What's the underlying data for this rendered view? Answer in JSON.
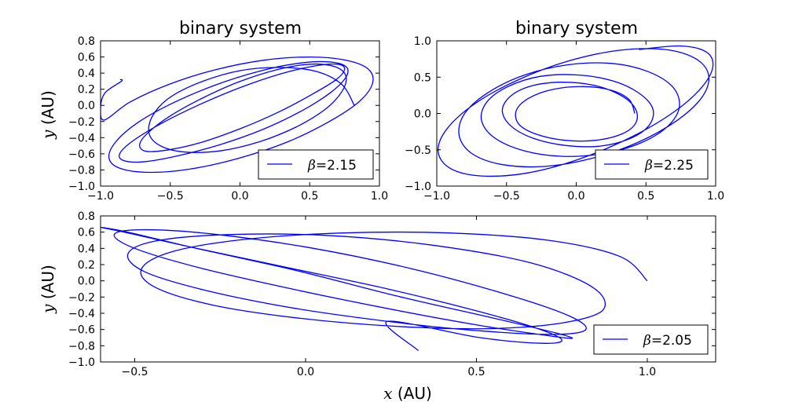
{
  "figure": {
    "xlabel_var": "x",
    "xlabel_unit": " (AU)"
  },
  "chart_data": [
    {
      "type": "line",
      "title": "binary system",
      "xlabel": "",
      "ylabel_var": "y",
      "ylabel_unit": " (AU)",
      "xlim": [
        -1.0,
        1.0
      ],
      "ylim": [
        -1.0,
        0.8
      ],
      "xticks": [
        "−1.0",
        "−0.5",
        "0.0",
        "0.5",
        "1.0"
      ],
      "xtick_values": [
        -1.0,
        -0.5,
        0.0,
        0.5,
        1.0
      ],
      "yticks": [
        "0.8",
        "0.6",
        "0.4",
        "0.2",
        "0.0",
        "−0.2",
        "−0.4",
        "−0.6",
        "−0.8",
        "−1.0"
      ],
      "ytick_values": [
        0.8,
        0.6,
        0.4,
        0.2,
        0.0,
        -0.2,
        -0.4,
        -0.6,
        -0.8,
        -1.0
      ],
      "legend": {
        "symbol": "β",
        "value": "=2.15",
        "placement": "lower-right"
      },
      "line_color": "#0000ff",
      "grid": false,
      "series": [
        {
          "x": [
            0.82,
            0.73,
            0.55,
            0.29,
            -0.0,
            -0.28,
            -0.51,
            -0.63,
            -0.65,
            -0.56,
            -0.38,
            -0.13,
            0.14,
            0.4,
            0.61,
            0.73,
            0.76,
            0.68,
            0.5,
            0.26,
            -0.01,
            -0.27,
            -0.5,
            -0.66,
            -0.72,
            -0.67,
            -0.51,
            -0.28,
            -0.0,
            0.28,
            0.52,
            0.69,
            0.75,
            0.7,
            0.54,
            0.29,
            0.0,
            -0.29,
            -0.56,
            -0.76,
            -0.86,
            -0.84,
            -0.7,
            -0.46,
            -0.15,
            0.16,
            0.44,
            0.65,
            0.76,
            0.76,
            0.63,
            0.41,
            0.13,
            -0.18,
            -0.48,
            -0.73,
            -0.89,
            -0.94,
            -0.86,
            -0.65,
            -0.36,
            -0.02,
            0.33,
            0.63,
            0.85,
            0.95,
            0.92,
            0.76,
            0.5,
            0.17,
            -0.18,
            -0.51,
            -0.79,
            -0.97,
            -1.0,
            -0.97,
            -0.85,
            -0.86
          ],
          "y": [
            0.0,
            0.26,
            0.42,
            0.47,
            0.43,
            0.29,
            0.09,
            -0.14,
            -0.36,
            -0.51,
            -0.58,
            -0.56,
            -0.45,
            -0.27,
            -0.05,
            0.17,
            0.36,
            0.48,
            0.51,
            0.44,
            0.29,
            0.09,
            -0.13,
            -0.34,
            -0.49,
            -0.57,
            -0.55,
            -0.46,
            -0.29,
            -0.08,
            0.14,
            0.32,
            0.45,
            0.51,
            0.49,
            0.39,
            0.22,
            0.01,
            -0.22,
            -0.43,
            -0.59,
            -0.68,
            -0.7,
            -0.63,
            -0.49,
            -0.3,
            -0.07,
            0.16,
            0.35,
            0.48,
            0.54,
            0.52,
            0.42,
            0.25,
            0.03,
            -0.21,
            -0.45,
            -0.65,
            -0.78,
            -0.83,
            -0.79,
            -0.66,
            -0.46,
            -0.21,
            0.04,
            0.27,
            0.45,
            0.56,
            0.6,
            0.56,
            0.44,
            0.26,
            0.04,
            -0.18,
            -0.05,
            0.15,
            0.3,
            0.32
          ]
        }
      ]
    },
    {
      "type": "line",
      "title": "binary system",
      "xlabel": "",
      "ylabel_var": "",
      "ylabel_unit": "",
      "xlim": [
        -1.0,
        1.0
      ],
      "ylim": [
        -1.0,
        1.0
      ],
      "xticks": [
        "−1.0",
        "−0.5",
        "0.0",
        "0.5",
        "1.0"
      ],
      "xtick_values": [
        -1.0,
        -0.5,
        0.0,
        0.5,
        1.0
      ],
      "yticks": [
        "1.0",
        "0.5",
        "0.0",
        "−0.5",
        "−1.0"
      ],
      "ytick_values": [
        1.0,
        0.5,
        0.0,
        -0.5,
        -1.0
      ],
      "legend": {
        "symbol": "β",
        "value": "=2.25",
        "placement": "lower-right"
      },
      "line_color": "#0000ff",
      "grid": false,
      "series": [
        {
          "x": [
            0.42,
            0.38,
            0.25,
            0.05,
            -0.17,
            -0.34,
            -0.43,
            -0.41,
            -0.28,
            -0.08,
            0.14,
            0.33,
            0.43,
            0.42,
            0.31,
            0.12,
            -0.11,
            -0.32,
            -0.47,
            -0.53,
            -0.47,
            -0.31,
            -0.08,
            0.17,
            0.38,
            0.52,
            0.55,
            0.45,
            0.26,
            0.01,
            -0.26,
            -0.49,
            -0.64,
            -0.68,
            -0.59,
            -0.38,
            -0.1,
            0.2,
            0.47,
            0.66,
            0.74,
            0.69,
            0.51,
            0.25,
            -0.06,
            -0.37,
            -0.63,
            -0.8,
            -0.84,
            -0.75,
            -0.54,
            -0.23,
            0.11,
            0.44,
            0.72,
            0.9,
            0.95,
            0.86,
            0.64,
            0.31,
            -0.06,
            -0.42,
            -0.73,
            -0.93,
            -0.99,
            -0.9,
            -0.68,
            -0.35,
            0.02,
            0.39,
            0.7,
            0.9,
            0.98,
            0.93,
            0.74,
            0.45
          ],
          "y": [
            0.0,
            0.19,
            0.32,
            0.37,
            0.33,
            0.21,
            0.04,
            -0.15,
            -0.29,
            -0.37,
            -0.37,
            -0.28,
            -0.12,
            0.08,
            0.26,
            0.39,
            0.43,
            0.38,
            0.24,
            0.04,
            -0.17,
            -0.34,
            -0.44,
            -0.45,
            -0.35,
            -0.17,
            0.06,
            0.28,
            0.45,
            0.53,
            0.51,
            0.37,
            0.16,
            -0.09,
            -0.33,
            -0.51,
            -0.59,
            -0.55,
            -0.4,
            -0.17,
            0.1,
            0.37,
            0.58,
            0.69,
            0.67,
            0.53,
            0.29,
            0.0,
            -0.3,
            -0.55,
            -0.7,
            -0.73,
            -0.62,
            -0.4,
            -0.1,
            0.22,
            0.52,
            0.75,
            0.88,
            0.87,
            0.72,
            0.46,
            0.13,
            -0.22,
            -0.53,
            -0.76,
            -0.86,
            -0.82,
            -0.63,
            -0.33,
            0.02,
            0.36,
            0.65,
            0.85,
            0.93,
            0.88
          ]
        }
      ]
    },
    {
      "type": "line",
      "title": "",
      "xlabel": "",
      "ylabel_var": "y",
      "ylabel_unit": " (AU)",
      "xlim": [
        -0.6,
        1.2
      ],
      "ylim": [
        -1.0,
        0.8
      ],
      "xticks": [
        "−0.5",
        "0.0",
        "0.5",
        "1.0"
      ],
      "xtick_values": [
        -0.5,
        0.0,
        0.5,
        1.0
      ],
      "yticks": [
        "0.8",
        "0.6",
        "0.4",
        "0.2",
        "0.0",
        "−0.2",
        "−0.4",
        "−0.6",
        "−0.8",
        "−1.0"
      ],
      "ytick_values": [
        0.8,
        0.6,
        0.4,
        0.2,
        0.0,
        -0.2,
        -0.4,
        -0.6,
        -0.8,
        -1.0
      ],
      "legend": {
        "symbol": "β",
        "value": "=2.05",
        "placement": "lower-right"
      },
      "line_color": "#0000ff",
      "grid": false,
      "series": [
        {
          "x": [
            1.0,
            0.92,
            0.71,
            0.42,
            0.11,
            -0.18,
            -0.39,
            -0.48,
            -0.44,
            -0.27,
            -0.02,
            0.26,
            0.53,
            0.75,
            0.87,
            0.84,
            0.66,
            0.37,
            0.06,
            -0.23,
            -0.44,
            -0.52,
            -0.47,
            -0.29,
            -0.03,
            0.26,
            0.52,
            0.73,
            0.82,
            0.77,
            0.59,
            0.31,
            0.01,
            -0.28,
            -0.48,
            -0.56,
            -0.5,
            -0.31,
            -0.04,
            0.25,
            0.51,
            0.7,
            0.78,
            0.73,
            0.55,
            0.27,
            -0.03,
            -0.32,
            -0.52,
            -0.6,
            -0.53,
            -0.34,
            -0.06,
            0.24,
            0.5,
            0.68,
            0.75,
            0.69,
            0.51,
            0.24,
            0.33
          ],
          "y": [
            0.0,
            0.3,
            0.5,
            0.59,
            0.59,
            0.51,
            0.36,
            0.15,
            -0.08,
            -0.3,
            -0.46,
            -0.56,
            -0.59,
            -0.52,
            -0.36,
            -0.08,
            0.22,
            0.44,
            0.56,
            0.57,
            0.49,
            0.33,
            0.11,
            -0.12,
            -0.34,
            -0.51,
            -0.62,
            -0.66,
            -0.6,
            -0.43,
            -0.17,
            0.15,
            0.41,
            0.58,
            0.63,
            0.57,
            0.4,
            0.16,
            -0.1,
            -0.35,
            -0.55,
            -0.67,
            -0.71,
            -0.64,
            -0.46,
            -0.19,
            0.13,
            0.4,
            0.6,
            0.66,
            0.6,
            0.42,
            0.17,
            -0.1,
            -0.37,
            -0.59,
            -0.73,
            -0.77,
            -0.7,
            -0.5,
            -0.86
          ]
        }
      ]
    }
  ]
}
